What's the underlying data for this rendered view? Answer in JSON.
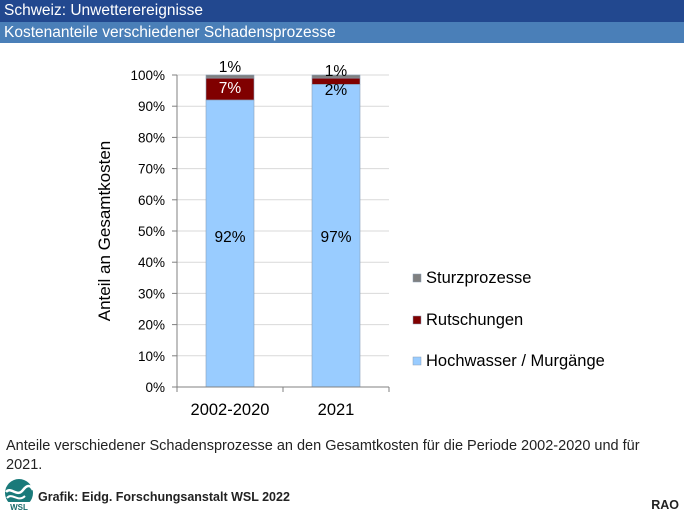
{
  "header": {
    "title": "Schweiz: Unwetterereignisse",
    "subtitle": "Kostenanteile verschiedener Schadensprozesse"
  },
  "chart_data": {
    "type": "bar",
    "stacked": true,
    "title": "Kostenanteile verschiedener Schadensprozesse",
    "xlabel": "",
    "ylabel": "Anteil an Gesamtkosten",
    "ylim": [
      0,
      100
    ],
    "yticks": [
      "0%",
      "10%",
      "20%",
      "30%",
      "40%",
      "50%",
      "60%",
      "70%",
      "80%",
      "90%",
      "100%"
    ],
    "categories": [
      "2002-2020",
      "2021"
    ],
    "series": [
      {
        "name": "Hochwasser / Murgänge",
        "values": [
          92,
          97
        ],
        "labels": [
          "92%",
          "97%"
        ],
        "color": "#99ccff"
      },
      {
        "name": "Rutschungen",
        "values": [
          7,
          2
        ],
        "labels": [
          "7%",
          "2%"
        ],
        "color": "#800000"
      },
      {
        "name": "Sturzprozesse",
        "values": [
          1,
          1
        ],
        "labels": [
          "1%",
          "1%"
        ],
        "color": "#808080"
      }
    ],
    "legend": [
      "Sturzprozesse",
      "Rutschungen",
      "Hochwasser / Murgänge"
    ],
    "legend_position": "right",
    "grid": true
  },
  "caption": "Anteile verschiedener Schadensprozesse an den Gesamtkosten für die Periode 2002-2020 und für 2021.",
  "credit": "Grafik: Eidg. Forschungsanstalt WSL 2022",
  "logo_text": "WSL",
  "corner_tag": "RAO"
}
